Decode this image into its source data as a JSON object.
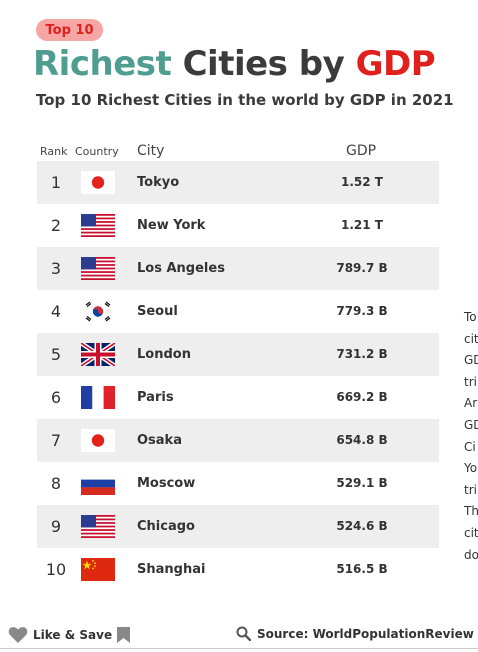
{
  "badge": "Top 10",
  "title": {
    "part1": "Richest",
    "part2": "Cities by",
    "part3": "GDP"
  },
  "subtitle": "Top 10 Richest Cities in the world by GDP in 2021",
  "colors": {
    "teal": "#4f9d8f",
    "red": "#e0201c",
    "dark": "#3b3b3b",
    "badge_bg": "#f7a6a6",
    "row_shade": "#eeeeee"
  },
  "table": {
    "headers": {
      "rank": "Rank",
      "country": "Country",
      "city": "City",
      "gdp": "GDP"
    },
    "rows": [
      {
        "rank": "1",
        "flag": "japan-flag-icon",
        "city": "Tokyo",
        "gdp": "1.52 T"
      },
      {
        "rank": "2",
        "flag": "usa-flag-icon",
        "city": "New York",
        "gdp": "1.21 T"
      },
      {
        "rank": "3",
        "flag": "usa-flag-icon",
        "city": "Los Angeles",
        "gdp": "789.7 B"
      },
      {
        "rank": "4",
        "flag": "south-korea-flag-icon",
        "city": "Seoul",
        "gdp": "779.3 B"
      },
      {
        "rank": "5",
        "flag": "uk-flag-icon",
        "city": "London",
        "gdp": "731.2 B"
      },
      {
        "rank": "6",
        "flag": "france-flag-icon",
        "city": "Paris",
        "gdp": "669.2 B"
      },
      {
        "rank": "7",
        "flag": "japan-flag-icon",
        "city": "Osaka",
        "gdp": "654.8 B"
      },
      {
        "rank": "8",
        "flag": "russia-flag-icon",
        "city": "Moscow",
        "gdp": "529.1 B"
      },
      {
        "rank": "9",
        "flag": "usa-flag-icon",
        "city": "Chicago",
        "gdp": "524.6 B"
      },
      {
        "rank": "10",
        "flag": "china-flag-icon",
        "city": "Shanghai",
        "gdp": "516.5 B"
      }
    ]
  },
  "side_text": [
    "To",
    "cit",
    "GD",
    "tri",
    "Ar",
    "GD",
    "Ci",
    "Yo",
    "tri",
    "Th",
    "cit",
    "do"
  ],
  "footer": {
    "like_label": "Like & Save",
    "source_label": "Source: WorldPopulationReview",
    "heart_icon": "heart-icon",
    "bookmark_icon": "bookmark-icon",
    "search_icon": "search-icon"
  }
}
